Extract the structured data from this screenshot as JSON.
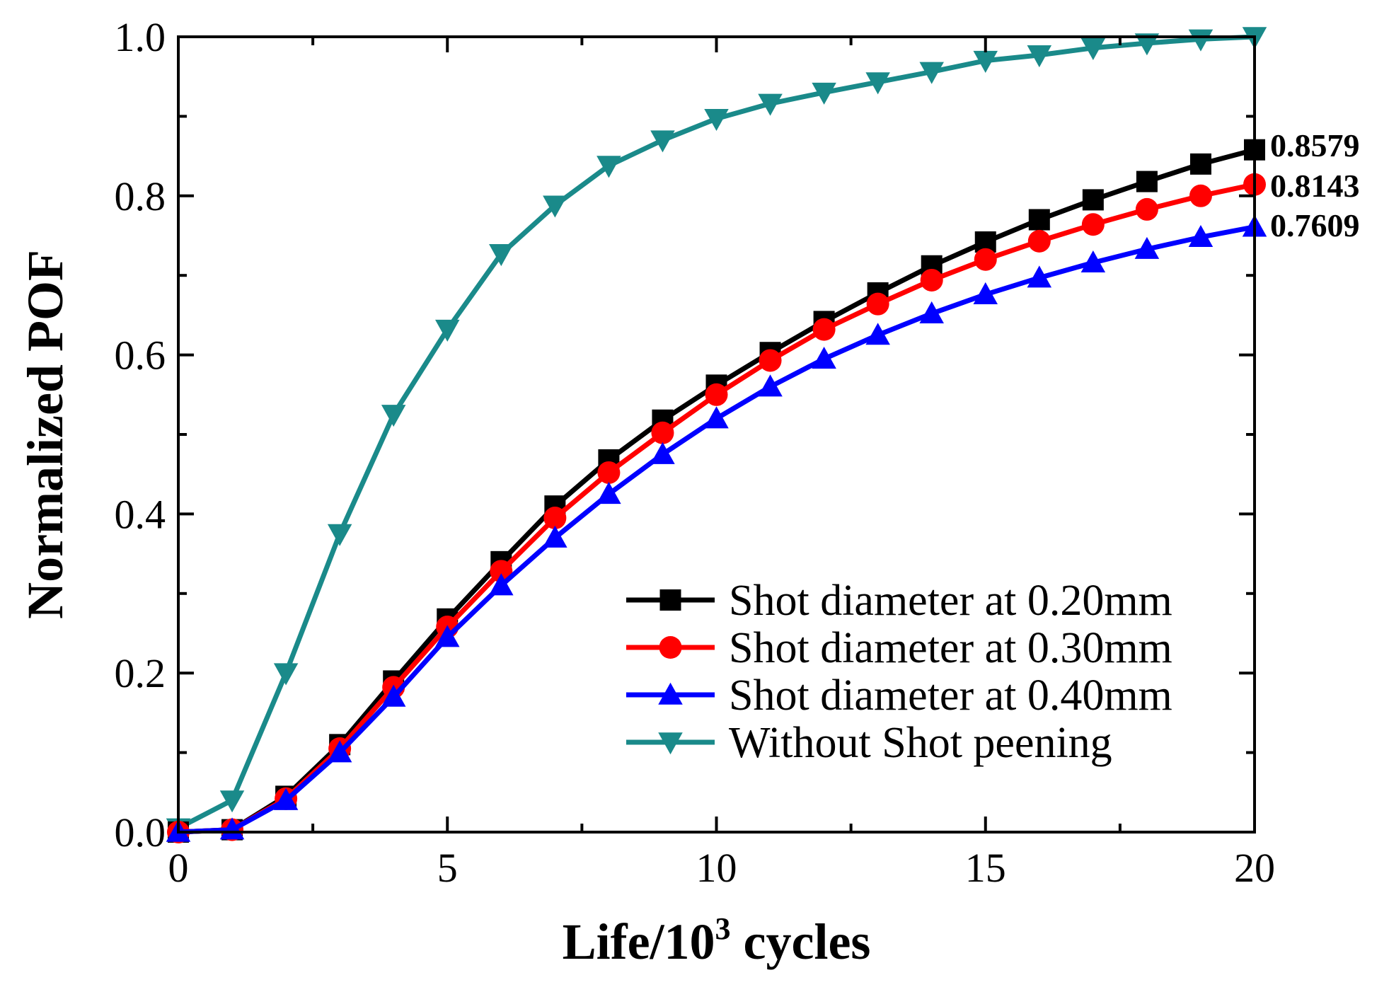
{
  "chart_data": {
    "type": "line",
    "title": "",
    "xlabel_main": "Life/10",
    "xlabel_sup": "3",
    "xlabel_tail": " cycles",
    "ylabel": "Normalized POF",
    "xlim": [
      0,
      20
    ],
    "ylim": [
      0,
      1.0
    ],
    "xticks": [
      0,
      5,
      10,
      15,
      20
    ],
    "xtick_labels": [
      "0",
      "5",
      "10",
      "15",
      "20"
    ],
    "yticks": [
      0.0,
      0.2,
      0.4,
      0.6,
      0.8,
      1.0
    ],
    "ytick_labels": [
      "0.0",
      "0.2",
      "0.4",
      "0.6",
      "0.8",
      "1.0"
    ],
    "grid": false,
    "legend_position": "lower-right",
    "x": [
      0,
      1,
      2,
      3,
      4,
      5,
      6,
      7,
      8,
      9,
      10,
      11,
      12,
      13,
      14,
      15,
      16,
      17,
      18,
      19,
      20
    ],
    "series": [
      {
        "name": "Shot diameter at 0.20mm",
        "color": "#000000",
        "marker": "square",
        "values": [
          0.0,
          0.003,
          0.045,
          0.11,
          0.19,
          0.268,
          0.34,
          0.41,
          0.468,
          0.518,
          0.562,
          0.603,
          0.642,
          0.678,
          0.712,
          0.742,
          0.77,
          0.795,
          0.818,
          0.84,
          0.8579
        ]
      },
      {
        "name": "Shot diameter at 0.30mm",
        "color": "#ff0000",
        "marker": "circle",
        "values": [
          0.0,
          0.003,
          0.042,
          0.105,
          0.182,
          0.258,
          0.328,
          0.395,
          0.452,
          0.502,
          0.55,
          0.593,
          0.632,
          0.664,
          0.694,
          0.72,
          0.743,
          0.764,
          0.783,
          0.8,
          0.8143
        ]
      },
      {
        "name": "Shot diameter at 0.40mm",
        "color": "#0000ff",
        "marker": "triangle-up",
        "values": [
          0.0,
          0.003,
          0.04,
          0.1,
          0.17,
          0.245,
          0.31,
          0.37,
          0.425,
          0.475,
          0.52,
          0.56,
          0.595,
          0.625,
          0.652,
          0.676,
          0.697,
          0.716,
          0.733,
          0.748,
          0.7609
        ]
      },
      {
        "name": "Without Shot peening",
        "color": "#1a8a8a",
        "marker": "triangle-down",
        "values": [
          0.005,
          0.04,
          0.2,
          0.375,
          0.525,
          0.632,
          0.727,
          0.788,
          0.838,
          0.87,
          0.897,
          0.916,
          0.93,
          0.943,
          0.956,
          0.97,
          0.977,
          0.986,
          0.992,
          0.997,
          1.0
        ]
      }
    ],
    "annotations": [
      "0.8579",
      "0.8143",
      "0.7609"
    ]
  }
}
